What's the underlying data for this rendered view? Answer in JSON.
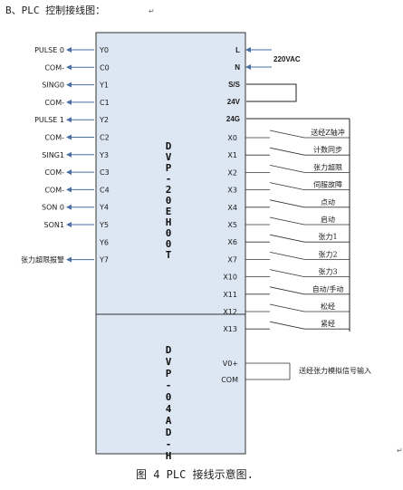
{
  "heading": "B、PLC 控制接线图：",
  "caption": "图 4 PLC 接线示意图.",
  "return_mark": "↵",
  "colors": {
    "box_fill": "#dde7f3",
    "line": "#4a6fa5",
    "switch": "#333333"
  },
  "main_module": {
    "name": "DVP-20EH00T",
    "left_pins": [
      "Y0",
      "C0",
      "Y1",
      "C1",
      "Y2",
      "C2",
      "Y3",
      "C3",
      "C4",
      "Y4",
      "Y5",
      "Y6",
      "Y7"
    ],
    "left_labels": [
      "PULSE 0",
      "COM-",
      "SING0",
      "COM-",
      "PULSE 1",
      "COM-",
      "SING1",
      "COM-",
      "COM-",
      "SON 0",
      "SON1",
      "",
      "张力超限报警"
    ],
    "power_pins": [
      "L",
      "N",
      "S/S",
      "24V",
      "24G"
    ],
    "power_label": "220VAC",
    "input_pins": [
      "X0",
      "X1",
      "X2",
      "X3",
      "X4",
      "X5",
      "X6",
      "X7",
      "X10",
      "X11",
      "X12",
      "X13"
    ],
    "input_labels": [
      "送经Z轴冲",
      "计数同步",
      "张力超限",
      "伺服故障",
      "点动",
      "启动",
      "张力1",
      "张力2",
      "张力3",
      "自动/手动",
      "松经",
      "紧经"
    ]
  },
  "ad_module": {
    "name": "DVP-04AD-H",
    "pins": [
      "V0+",
      "COM"
    ],
    "signal_label": "送经张力模拟信号输入"
  }
}
